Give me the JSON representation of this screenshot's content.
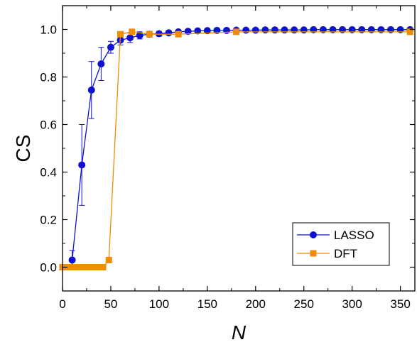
{
  "chart_data": {
    "type": "line",
    "title": "",
    "xlabel": "N",
    "ylabel": "CS",
    "xlim": [
      0,
      365
    ],
    "ylim": [
      -0.1,
      1.1
    ],
    "x_ticks": [
      "0",
      "50",
      "100",
      "150",
      "200",
      "250",
      "300",
      "350"
    ],
    "y_ticks": [
      "0.0",
      "0.2",
      "0.4",
      "0.6",
      "0.8",
      "1.0"
    ],
    "legend_position": "bottom-right",
    "series": [
      {
        "name": "LASSO",
        "color": "#1010d0",
        "marker": "circle",
        "x": [
          10,
          20,
          30,
          40,
          50,
          60,
          70,
          80,
          90,
          100,
          110,
          120,
          130,
          140,
          150,
          160,
          170,
          180,
          190,
          200,
          210,
          220,
          230,
          240,
          250,
          260,
          270,
          280,
          290,
          300,
          310,
          320,
          330,
          340,
          350,
          360
        ],
        "y": [
          0.03,
          0.43,
          0.745,
          0.855,
          0.925,
          0.955,
          0.965,
          0.975,
          0.98,
          0.982,
          0.986,
          0.99,
          0.992,
          0.994,
          0.995,
          0.996,
          0.996,
          0.997,
          0.997,
          0.997,
          0.998,
          0.998,
          0.998,
          0.998,
          0.998,
          0.999,
          0.999,
          0.999,
          0.999,
          0.999,
          0.999,
          0.999,
          0.999,
          0.999,
          0.999,
          0.999
        ],
        "err": [
          0.04,
          0.17,
          0.12,
          0.07,
          0.025,
          0.02,
          0.02,
          0.015,
          0.012,
          0.01,
          0.008,
          0.007,
          0.006,
          0.005,
          0.005,
          0.004,
          0.004,
          0.003,
          0.003,
          0.003,
          0.003,
          0.003,
          0.002,
          0.002,
          0.002,
          0.002,
          0.002,
          0.002,
          0.002,
          0.002,
          0.002,
          0.002,
          0.002,
          0.002,
          0.002,
          0.002
        ]
      },
      {
        "name": "DFT",
        "color": "#f08c00",
        "marker": "square",
        "x": [
          0,
          3,
          6,
          9,
          12,
          15,
          18,
          21,
          24,
          27,
          30,
          33,
          36,
          39,
          42,
          48,
          60,
          72,
          90,
          120,
          180,
          360
        ],
        "y": [
          0.0,
          0.0,
          0.0,
          0.0,
          0.0,
          0.0,
          0.0,
          0.0,
          0.0,
          0.0,
          0.0,
          0.0,
          0.0,
          0.0,
          0.0,
          0.03,
          0.98,
          0.99,
          0.98,
          0.98,
          0.99,
          0.99
        ]
      }
    ]
  }
}
